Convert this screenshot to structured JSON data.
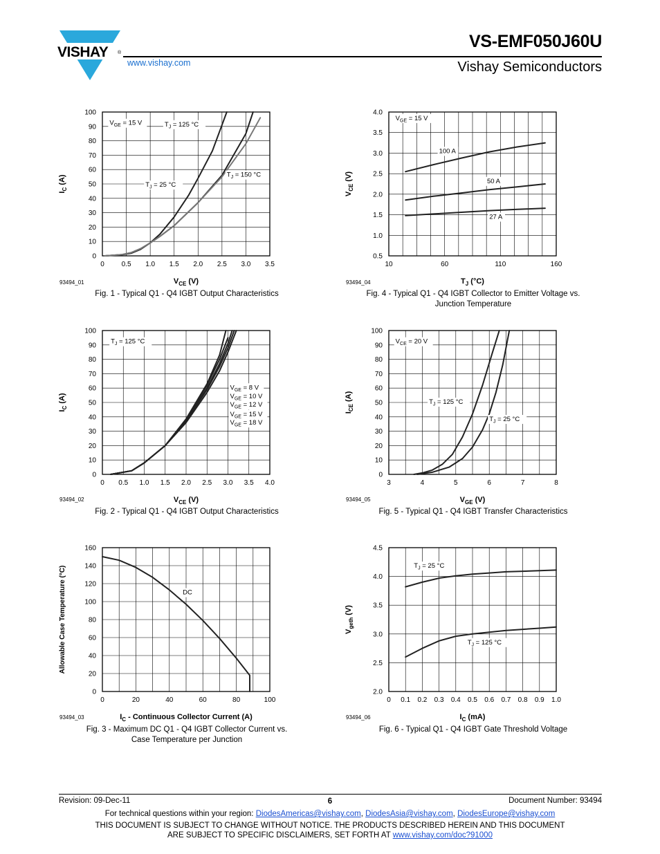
{
  "header": {
    "logo_text": "VISHAY",
    "logo_mark": "®",
    "part_number": "VS-EMF050J60U",
    "company": "Vishay Semiconductors",
    "website": "www.vishay.com"
  },
  "figures": [
    {
      "id": "93494_01",
      "caption": [
        "Fig. 1 - Typical Q1 - Q4 IGBT Output Characteristics"
      ]
    },
    {
      "id": "93494_04",
      "caption": [
        "Fig. 4 - Typical Q1 - Q4 IGBT Collector to Emitter Voltage vs.",
        "Junction Temperature"
      ]
    },
    {
      "id": "93494_02",
      "caption": [
        "Fig. 2 - Typical Q1 - Q4 IGBT Output Characteristics"
      ]
    },
    {
      "id": "93494_05",
      "caption": [
        "Fig. 5 - Typical Q1 - Q4 IGBT Transfer Characteristics"
      ]
    },
    {
      "id": "93494_03",
      "caption": [
        "Fig. 3 - Maximum DC Q1 - Q4 IGBT Collector Current vs.",
        "Case Temperature per Junction"
      ]
    },
    {
      "id": "93494_06",
      "caption": [
        "Fig. 6 - Typical Q1 - Q4 IGBT Gate Threshold Voltage"
      ]
    }
  ],
  "chart_data": [
    {
      "type": "line",
      "xlabel": {
        "main": "V",
        "sub": "CE",
        "tail": " (V)"
      },
      "ylabel": {
        "main": "I",
        "sub": "C",
        "tail": " (A)"
      },
      "xlim": [
        0,
        3.5
      ],
      "ylim": [
        0,
        100
      ],
      "xticks": [
        0,
        0.5,
        1.0,
        1.5,
        2.0,
        2.5,
        3.0,
        3.5
      ],
      "xtick_labels": [
        "0",
        "0.5",
        "1.0",
        "1.5",
        "2.0",
        "2.5",
        "3.0",
        "3.5"
      ],
      "yticks": [
        0,
        10,
        20,
        30,
        40,
        50,
        60,
        70,
        80,
        90,
        100
      ],
      "ytick_labels": [
        "0",
        "10",
        "20",
        "30",
        "40",
        "50",
        "60",
        "70",
        "80",
        "90",
        "100"
      ],
      "grid": true,
      "annotations": [
        {
          "main": "V",
          "sub": "GE",
          "tail": " = 15 V",
          "x": 0.15,
          "y": 91
        },
        {
          "main": "T",
          "sub": "J",
          "tail": " = 125 °C",
          "x": 1.3,
          "y": 90
        },
        {
          "main": "T",
          "sub": "J",
          "tail": " = 150 °C",
          "x": 2.6,
          "y": 55
        },
        {
          "main": "T",
          "sub": "J",
          "tail": " = 25 °C",
          "x": 0.9,
          "y": 48
        }
      ],
      "series": [
        {
          "color": "#222222",
          "x": [
            0.05,
            0.4,
            0.6,
            0.8,
            1.0,
            1.2,
            1.5,
            1.8,
            2.0,
            2.3,
            2.6
          ],
          "y": [
            0,
            0.7,
            1.8,
            4.5,
            9,
            15,
            27,
            42,
            54,
            73,
            100
          ]
        },
        {
          "color": "#222222",
          "x": [
            0.05,
            0.4,
            0.6,
            0.8,
            1.0,
            1.2,
            1.5,
            2.0,
            2.5,
            3.0,
            3.15
          ],
          "y": [
            0,
            0.8,
            2.2,
            5,
            9,
            13.5,
            21,
            37,
            56,
            85,
            100
          ]
        },
        {
          "color": "#777777",
          "x": [
            0.05,
            0.4,
            0.6,
            0.8,
            1.0,
            1.2,
            1.5,
            2.0,
            2.5,
            3.0,
            3.3
          ],
          "y": [
            0,
            0.8,
            2.2,
            5,
            9,
            13.5,
            21,
            37,
            55,
            78,
            96
          ]
        }
      ]
    },
    {
      "type": "line",
      "xlabel": {
        "main": "T",
        "sub": "J",
        "tail": " (°C)"
      },
      "ylabel": {
        "main": "V",
        "sub": "CE",
        "tail": " (V)"
      },
      "xlim": [
        10,
        160
      ],
      "ylim": [
        0.5,
        4.0
      ],
      "xticks": [
        10,
        60,
        110,
        160
      ],
      "xtick_labels": [
        "10",
        "60",
        "110",
        "160"
      ],
      "yticks": [
        0.5,
        1.0,
        1.5,
        2.0,
        2.5,
        3.0,
        3.5,
        4.0
      ],
      "ytick_labels": [
        "0.5",
        "1.0",
        "1.5",
        "2.0",
        "2.5",
        "3.0",
        "3.5",
        "4.0"
      ],
      "xgrid": [
        10,
        22.5,
        35,
        47.5,
        60,
        72.5,
        85,
        97.5,
        110,
        122.5,
        135,
        147.5,
        160
      ],
      "grid": true,
      "annotations": [
        {
          "main": "V",
          "sub": "GE",
          "tail": " = 15 V",
          "x": 16,
          "y": 3.8
        },
        {
          "main": "",
          "sub": "",
          "tail": "100 A",
          "x": 55,
          "y": 3.0
        },
        {
          "main": "",
          "sub": "",
          "tail": "50 A",
          "x": 98,
          "y": 2.27
        },
        {
          "main": "",
          "sub": "",
          "tail": "27 A",
          "x": 100,
          "y": 1.4
        }
      ],
      "series": [
        {
          "color": "#222222",
          "x": [
            25,
            50,
            75,
            100,
            125,
            150
          ],
          "y": [
            2.55,
            2.72,
            2.88,
            3.03,
            3.15,
            3.25
          ]
        },
        {
          "color": "#222222",
          "x": [
            25,
            50,
            75,
            100,
            125,
            150
          ],
          "y": [
            1.86,
            1.95,
            2.03,
            2.11,
            2.18,
            2.25
          ]
        },
        {
          "color": "#222222",
          "x": [
            25,
            50,
            75,
            100,
            125,
            150
          ],
          "y": [
            1.48,
            1.52,
            1.56,
            1.6,
            1.63,
            1.66
          ]
        }
      ]
    },
    {
      "type": "line",
      "xlabel": {
        "main": "V",
        "sub": "CE",
        "tail": " (V)"
      },
      "ylabel": {
        "main": "I",
        "sub": "C",
        "tail": " (A)"
      },
      "xlim": [
        0,
        4.0
      ],
      "ylim": [
        0,
        100
      ],
      "xticks": [
        0,
        0.5,
        1.0,
        1.5,
        2.0,
        2.5,
        3.0,
        3.5,
        4.0
      ],
      "xtick_labels": [
        "0",
        "0.5",
        "1.0",
        "1.5",
        "2.0",
        "2.5",
        "3.0",
        "3.5",
        "4.0"
      ],
      "yticks": [
        0,
        10,
        20,
        30,
        40,
        50,
        60,
        70,
        80,
        90,
        100
      ],
      "ytick_labels": [
        "0",
        "10",
        "20",
        "30",
        "40",
        "50",
        "60",
        "70",
        "80",
        "90",
        "100"
      ],
      "grid": true,
      "annotations": [
        {
          "main": "T",
          "sub": "J",
          "tail": " = 125 °C",
          "x": 0.2,
          "y": 91
        },
        {
          "main": "V",
          "sub": "GE",
          "tail": " = 8 V",
          "x": 3.05,
          "y": 59
        },
        {
          "main": "V",
          "sub": "GE",
          "tail": " = 10 V",
          "x": 3.05,
          "y": 53
        },
        {
          "main": "V",
          "sub": "GE",
          "tail": " = 12 V",
          "x": 3.05,
          "y": 47
        },
        {
          "main": "V",
          "sub": "GE",
          "tail": " = 15 V",
          "x": 3.05,
          "y": 40.5
        },
        {
          "main": "V",
          "sub": "GE",
          "tail": " = 18 V",
          "x": 3.05,
          "y": 34.5
        }
      ],
      "series": [
        {
          "color": "#222222",
          "x": [
            0.2,
            0.7,
            1.0,
            1.5,
            2.0,
            2.5,
            2.8,
            3.0,
            3.2
          ],
          "y": [
            0,
            2.5,
            8,
            20,
            36,
            57,
            72,
            85,
            100
          ]
        },
        {
          "color": "#222222",
          "x": [
            0.2,
            0.7,
            1.0,
            1.5,
            2.0,
            2.5,
            2.8,
            3.0,
            3.15
          ],
          "y": [
            0,
            2.5,
            8,
            20,
            37,
            59,
            75,
            88,
            100
          ]
        },
        {
          "color": "#222222",
          "x": [
            0.2,
            0.7,
            1.0,
            1.5,
            2.0,
            2.5,
            2.8,
            3.0,
            3.1
          ],
          "y": [
            0,
            2.5,
            8,
            20,
            37.5,
            60,
            77,
            91,
            100
          ]
        },
        {
          "color": "#222222",
          "x": [
            0.2,
            0.7,
            1.0,
            1.5,
            2.0,
            2.5,
            2.8,
            3.0
          ],
          "y": [
            0,
            2.5,
            8,
            20,
            38,
            62,
            80,
            95
          ]
        },
        {
          "color": "#222222",
          "x": [
            0.2,
            0.7,
            1.0,
            1.5,
            2.0,
            2.5,
            2.8,
            2.95
          ],
          "y": [
            0,
            2.5,
            8,
            20,
            38.5,
            63,
            83,
            100
          ]
        }
      ]
    },
    {
      "type": "line",
      "xlabel": {
        "main": "V",
        "sub": "GE",
        "tail": " (V)"
      },
      "ylabel": {
        "main": "I",
        "sub": "CE",
        "tail": " (A)"
      },
      "xlim": [
        3,
        8
      ],
      "ylim": [
        0,
        100
      ],
      "xticks": [
        3,
        4,
        5,
        6,
        7,
        8
      ],
      "xtick_labels": [
        "3",
        "4",
        "5",
        "6",
        "7",
        "8"
      ],
      "yticks": [
        0,
        10,
        20,
        30,
        40,
        50,
        60,
        70,
        80,
        90,
        100
      ],
      "ytick_labels": [
        "0",
        "10",
        "20",
        "30",
        "40",
        "50",
        "60",
        "70",
        "80",
        "90",
        "100"
      ],
      "xgrid": [
        3,
        3.5,
        4,
        4.5,
        5,
        5.5,
        6,
        6.5,
        7,
        7.5,
        8
      ],
      "grid": true,
      "annotations": [
        {
          "main": "V",
          "sub": "CE",
          "tail": " = 20 V",
          "x": 3.2,
          "y": 91
        },
        {
          "main": "T",
          "sub": "J",
          "tail": " = 125 °C",
          "x": 4.2,
          "y": 49
        },
        {
          "main": "T",
          "sub": "J",
          "tail": " = 25 °C",
          "x": 6.0,
          "y": 37
        }
      ],
      "series": [
        {
          "color": "#222222",
          "x": [
            3.75,
            4.0,
            4.3,
            4.6,
            4.9,
            5.2,
            5.5,
            5.8,
            6.1,
            6.3
          ],
          "y": [
            0,
            1,
            3,
            7,
            14,
            26,
            42,
            62,
            85,
            100
          ]
        },
        {
          "color": "#222222",
          "x": [
            3.85,
            4.3,
            4.8,
            5.2,
            5.5,
            5.8,
            6.0,
            6.2,
            6.4,
            6.6
          ],
          "y": [
            0,
            1.5,
            5,
            11,
            19,
            31,
            42,
            57,
            76,
            100
          ]
        }
      ]
    },
    {
      "type": "line",
      "xlabel": {
        "main": "I",
        "sub": "C",
        "tail": " - Continuous Collector Current (A)"
      },
      "ylabel": {
        "main": "Allowable Case Temperature (°C)",
        "sub": "",
        "tail": ""
      },
      "xlim": [
        0,
        100
      ],
      "ylim": [
        0,
        160
      ],
      "xticks": [
        0,
        20,
        40,
        60,
        80,
        100
      ],
      "xtick_labels": [
        "0",
        "20",
        "40",
        "60",
        "80",
        "100"
      ],
      "yticks": [
        0,
        20,
        40,
        60,
        80,
        100,
        120,
        140,
        160
      ],
      "ytick_labels": [
        "0",
        "20",
        "40",
        "60",
        "80",
        "100",
        "120",
        "140",
        "160"
      ],
      "xgrid": [
        0,
        10,
        20,
        30,
        40,
        50,
        60,
        70,
        80,
        90,
        100
      ],
      "grid": true,
      "annotations": [
        {
          "main": "",
          "sub": "",
          "tail": "DC",
          "x": 48,
          "y": 108
        }
      ],
      "series": [
        {
          "color": "#222222",
          "x": [
            0,
            10,
            20,
            30,
            40,
            50,
            60,
            70,
            80,
            88,
            88
          ],
          "y": [
            150,
            146,
            138,
            127,
            113,
            97,
            79,
            59,
            37,
            18,
            0
          ]
        }
      ]
    },
    {
      "type": "line",
      "xlabel": {
        "main": "I",
        "sub": "C",
        "tail": " (mA)"
      },
      "ylabel": {
        "main": "V",
        "sub": "geth",
        "tail": " (V)"
      },
      "xlim": [
        0,
        1.0
      ],
      "ylim": [
        2.0,
        4.5
      ],
      "xticks": [
        0,
        0.1,
        0.2,
        0.3,
        0.4,
        0.5,
        0.6,
        0.7,
        0.8,
        0.9,
        1.0
      ],
      "xtick_labels": [
        "0",
        "0.1",
        "0.2",
        "0.3",
        "0.4",
        "0.5",
        "0.6",
        "0.7",
        "0.8",
        "0.9",
        "1.0"
      ],
      "yticks": [
        2.0,
        2.5,
        3.0,
        3.5,
        4.0,
        4.5
      ],
      "ytick_labels": [
        "2.0",
        "2.5",
        "3.0",
        "3.5",
        "4.0",
        "4.5"
      ],
      "grid": true,
      "annotations": [
        {
          "main": "T",
          "sub": "J",
          "tail": " = 25 °C",
          "x": 0.15,
          "y": 4.15
        },
        {
          "main": "T",
          "sub": "J",
          "tail": " = 125 °C",
          "x": 0.47,
          "y": 2.82
        }
      ],
      "series": [
        {
          "color": "#222222",
          "x": [
            0.1,
            0.2,
            0.3,
            0.4,
            0.5,
            0.6,
            0.7,
            0.8,
            0.9,
            1.0
          ],
          "y": [
            3.82,
            3.9,
            3.97,
            4.01,
            4.04,
            4.06,
            4.08,
            4.09,
            4.1,
            4.11
          ]
        },
        {
          "color": "#222222",
          "x": [
            0.1,
            0.2,
            0.3,
            0.4,
            0.5,
            0.6,
            0.7,
            0.8,
            0.9,
            1.0
          ],
          "y": [
            2.6,
            2.75,
            2.88,
            2.96,
            3.0,
            3.03,
            3.06,
            3.08,
            3.1,
            3.12
          ]
        }
      ]
    }
  ],
  "footer": {
    "revision": "Revision: 09-Dec-11",
    "page": "6",
    "document_number": "Document Number: 93494",
    "contact_prefix": "For technical questions within your region: ",
    "email_americas": "DiodesAmericas@vishay.com",
    "email_asia": "DiodesAsia@vishay.com",
    "email_europe": "DiodesEurope@vishay.com",
    "separator": ", ",
    "disclaimer_line1": "THIS DOCUMENT IS SUBJECT TO CHANGE WITHOUT NOTICE. THE PRODUCTS DESCRIBED HEREIN AND THIS DOCUMENT",
    "disclaimer_line2_prefix": "ARE SUBJECT TO SPECIFIC DISCLAIMERS, SET FORTH AT ",
    "disclaimer_link": "www.vishay.com/doc?91000"
  }
}
